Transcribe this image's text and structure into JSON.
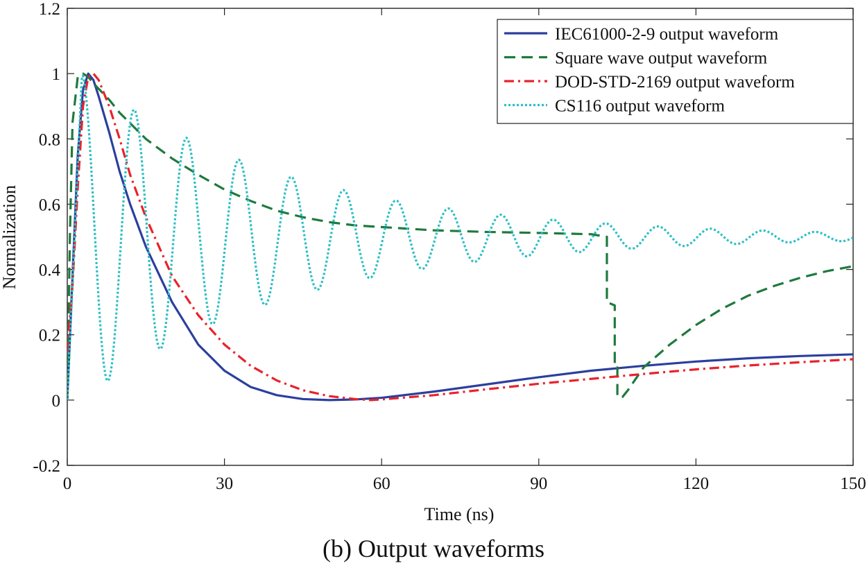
{
  "chart_data": {
    "type": "line",
    "title": "",
    "xlabel": "Time (ns)",
    "ylabel": "Normalization",
    "xlim": [
      0,
      150
    ],
    "ylim": [
      -0.2,
      1.2
    ],
    "xticks": [
      0,
      30,
      60,
      90,
      120,
      150
    ],
    "yticks": [
      -0.2,
      0,
      0.2,
      0.4,
      0.6,
      0.8,
      1,
      1.2
    ],
    "ytick_labels": [
      "-0.2",
      "0",
      "0.2",
      "0.4",
      "0.6",
      "0.8",
      "1",
      "1.2"
    ],
    "grid": false,
    "legend_position": "top-right",
    "series": [
      {
        "name": "IEC61000-2-9 output waveform",
        "color": "#2b3f9e",
        "style": "solid",
        "x": [
          0,
          1,
          2,
          3,
          4,
          5,
          6,
          8,
          10,
          12,
          15,
          20,
          25,
          30,
          35,
          40,
          45,
          50,
          55,
          60,
          70,
          80,
          90,
          100,
          110,
          120,
          130,
          140,
          150
        ],
        "y": [
          0.0,
          0.38,
          0.75,
          0.95,
          1.0,
          0.98,
          0.93,
          0.82,
          0.7,
          0.6,
          0.47,
          0.3,
          0.17,
          0.09,
          0.04,
          0.015,
          0.003,
          0.0,
          0.002,
          0.007,
          0.026,
          0.048,
          0.07,
          0.09,
          0.105,
          0.118,
          0.128,
          0.135,
          0.14
        ]
      },
      {
        "name": "Square wave output waveform",
        "color": "#1e7a3c",
        "style": "dashed",
        "x": [
          0,
          0.5,
          1,
          2,
          3,
          4,
          5,
          8,
          10,
          15,
          20,
          25,
          30,
          35,
          40,
          45,
          50,
          55,
          60,
          70,
          80,
          90,
          100,
          103,
          103,
          104.5,
          104.5,
          105,
          105,
          106,
          107,
          110,
          115,
          120,
          125,
          130,
          135,
          140,
          145,
          150
        ],
        "y": [
          0.0,
          0.5,
          0.85,
          0.99,
          1.0,
          0.99,
          0.97,
          0.92,
          0.88,
          0.8,
          0.74,
          0.69,
          0.645,
          0.61,
          0.58,
          0.56,
          0.545,
          0.535,
          0.53,
          0.52,
          0.515,
          0.512,
          0.508,
          0.5,
          0.3,
          0.29,
          0.1,
          0.1,
          0.01,
          0.01,
          0.03,
          0.1,
          0.17,
          0.23,
          0.28,
          0.32,
          0.35,
          0.375,
          0.395,
          0.41
        ]
      },
      {
        "name": "DOD-STD-2169 output waveform",
        "color": "#e8232a",
        "style": "dashdot",
        "x": [
          0,
          1,
          2,
          3,
          4,
          5,
          6,
          8,
          10,
          12,
          15,
          20,
          25,
          30,
          35,
          40,
          45,
          50,
          55,
          58,
          60,
          70,
          80,
          90,
          100,
          110,
          120,
          130,
          140,
          150
        ],
        "y": [
          0.15,
          0.35,
          0.65,
          0.9,
          0.99,
          1.0,
          0.98,
          0.9,
          0.8,
          0.69,
          0.56,
          0.38,
          0.26,
          0.17,
          0.105,
          0.06,
          0.03,
          0.012,
          0.003,
          0.0,
          0.002,
          0.015,
          0.033,
          0.05,
          0.065,
          0.08,
          0.094,
          0.106,
          0.116,
          0.125
        ]
      },
      {
        "name": "CS116 output waveform",
        "color": "#2bbfc4",
        "style": "dotted",
        "damped_sine": {
          "offset": 0.5,
          "amplitude": 0.5,
          "decay_ns": 40,
          "frequency_ghz": 0.1,
          "start_ns": 2.8,
          "end_ns": 150
        }
      }
    ]
  },
  "caption": "(b) Output waveforms"
}
